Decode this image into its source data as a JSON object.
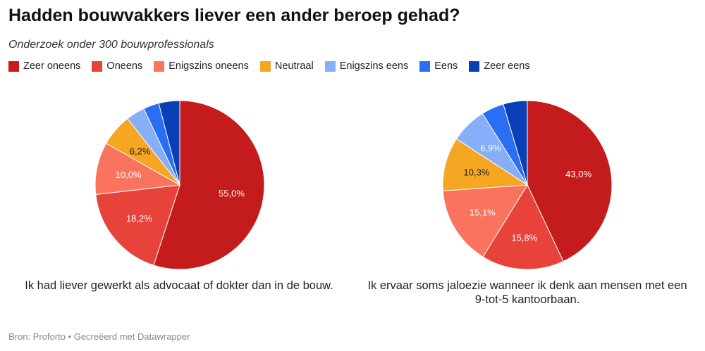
{
  "title": "Hadden bouwvakkers liever een ander beroep gehad?",
  "subtitle": "Onderzoek onder 300 bouwprofessionals",
  "legend": [
    {
      "label": "Zeer oneens",
      "color": "#c41c1c"
    },
    {
      "label": "Oneens",
      "color": "#e8433b"
    },
    {
      "label": "Enigszins oneens",
      "color": "#f9735f"
    },
    {
      "label": "Neutraal",
      "color": "#f5a623"
    },
    {
      "label": "Enigszins eens",
      "color": "#86aef9"
    },
    {
      "label": "Eens",
      "color": "#2a6ff2"
    },
    {
      "label": "Zeer eens",
      "color": "#0a3fb5"
    }
  ],
  "source": "Bron: Proforto • Gecreëerd met Datawrapper",
  "chart_data": [
    {
      "type": "pie",
      "caption": "Ik had liever gewerkt als advocaat of dokter dan in de bouw.",
      "categories": [
        "Zeer oneens",
        "Oneens",
        "Enigszins oneens",
        "Neutraal",
        "Enigszins eens",
        "Eens",
        "Zeer eens"
      ],
      "values": [
        55.0,
        18.2,
        10.0,
        6.2,
        3.6,
        3.0,
        4.0
      ],
      "labels": [
        "55,0%",
        "18,2%",
        "10,0%",
        "6,2%",
        "",
        "",
        ""
      ]
    },
    {
      "type": "pie",
      "caption": "Ik ervaar soms jaloezie wanneer ik denk aan mensen met een 9-tot-5 kantoorbaan.",
      "categories": [
        "Zeer oneens",
        "Oneens",
        "Enigszins oneens",
        "Neutraal",
        "Enigszins eens",
        "Eens",
        "Zeer eens"
      ],
      "values": [
        43.0,
        15.8,
        15.1,
        10.3,
        6.9,
        4.3,
        4.6
      ],
      "labels": [
        "43,0%",
        "15,8%",
        "15,1%",
        "10,3%",
        "6,9%",
        "",
        ""
      ]
    }
  ]
}
